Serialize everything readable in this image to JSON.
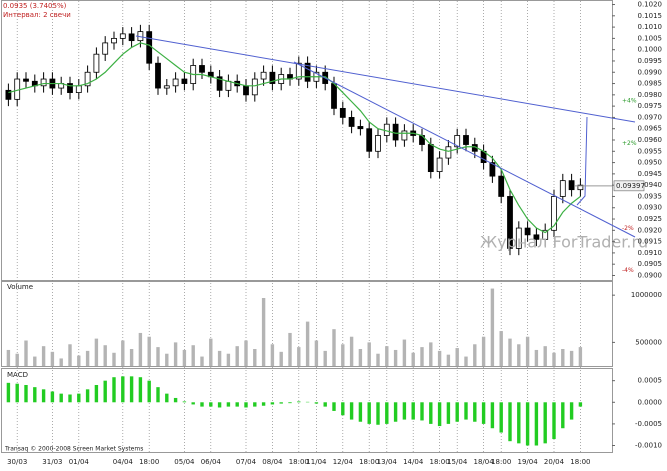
{
  "chart_data": [
    {
      "type": "candlestick",
      "title": "0.0935 (3.7405%)",
      "subtitle": "Интервал: 2 свечи",
      "watermark": "Журнал ForTrader.ru",
      "footer": "Transaq © 2000-2008 Screen Market Systems",
      "categories": [
        null,
        "30/03",
        null,
        null,
        null,
        "31/03",
        null,
        null,
        "01/04",
        null,
        null,
        null,
        null,
        "04/04",
        null,
        null,
        "18:00",
        null,
        null,
        null,
        "05/04",
        null,
        null,
        "06/04",
        null,
        null,
        null,
        "07/04",
        null,
        null,
        "08/04",
        null,
        null,
        "18:00",
        null,
        "11/04",
        null,
        null,
        "12/04",
        null,
        null,
        "18:00",
        null,
        "13/04",
        null,
        null,
        "14/04",
        null,
        null,
        "18:00",
        null,
        "15/04",
        null,
        null,
        "18/04",
        null,
        "18:00",
        null,
        null,
        "19/04",
        null,
        null,
        "20/04",
        null,
        null,
        "18:00"
      ],
      "open": [
        0.0982,
        0.0978,
        0.0987,
        0.0986,
        0.0984,
        0.0987,
        0.0983,
        0.0985,
        0.0981,
        0.0984,
        0.099,
        0.0998,
        0.1003,
        0.1005,
        0.1007,
        0.1004,
        0.1008,
        0.0994,
        0.0983,
        0.0984,
        0.0987,
        0.0985,
        0.0993,
        0.099,
        0.0988,
        0.0982,
        0.0986,
        0.0984,
        0.098,
        0.0987,
        0.099,
        0.0985,
        0.0989,
        0.0987,
        0.0994,
        0.0986,
        0.099,
        0.0985,
        0.0974,
        0.097,
        0.0966,
        0.0965,
        0.0955,
        0.0962,
        0.0967,
        0.096,
        0.0964,
        0.0962,
        0.0958,
        0.0946,
        0.0952,
        0.0957,
        0.0962,
        0.0958,
        0.0955,
        0.095,
        0.0944,
        0.0935,
        0.0912,
        0.0921,
        0.0918,
        0.0916,
        0.092,
        0.0935,
        0.0942,
        0.0938
      ],
      "high": [
        0.0985,
        0.099,
        0.099,
        0.0989,
        0.099,
        0.099,
        0.0988,
        0.0988,
        0.0987,
        0.0993,
        0.1001,
        0.1006,
        0.1008,
        0.101,
        0.101,
        0.1011,
        0.1011,
        0.0997,
        0.0987,
        0.099,
        0.099,
        0.0996,
        0.0996,
        0.0993,
        0.0991,
        0.0989,
        0.0989,
        0.0987,
        0.099,
        0.0993,
        0.0993,
        0.0992,
        0.0992,
        0.0997,
        0.0997,
        0.0993,
        0.0993,
        0.0988,
        0.0977,
        0.0973,
        0.0969,
        0.0968,
        0.0965,
        0.097,
        0.097,
        0.0967,
        0.0967,
        0.0965,
        0.0961,
        0.0955,
        0.096,
        0.0965,
        0.0965,
        0.0961,
        0.0958,
        0.0953,
        0.0947,
        0.0938,
        0.0924,
        0.0924,
        0.0921,
        0.0923,
        0.0938,
        0.0945,
        0.0945,
        0.0943
      ],
      "low": [
        0.0975,
        0.0975,
        0.0983,
        0.0981,
        0.0981,
        0.098,
        0.098,
        0.0978,
        0.0978,
        0.0981,
        0.0987,
        0.0995,
        0.1,
        0.1002,
        0.1001,
        0.1001,
        0.0991,
        0.098,
        0.098,
        0.0981,
        0.0982,
        0.0982,
        0.0987,
        0.0985,
        0.0979,
        0.0979,
        0.0981,
        0.0977,
        0.0977,
        0.0984,
        0.0982,
        0.0982,
        0.0984,
        0.0984,
        0.0983,
        0.0983,
        0.0982,
        0.0971,
        0.0967,
        0.0963,
        0.0962,
        0.0952,
        0.0952,
        0.0959,
        0.0957,
        0.0957,
        0.0959,
        0.0955,
        0.0943,
        0.0943,
        0.0949,
        0.0954,
        0.0955,
        0.0952,
        0.0947,
        0.0941,
        0.0932,
        0.0909,
        0.0909,
        0.0915,
        0.0913,
        0.0913,
        0.0917,
        0.0932,
        0.0935,
        0.0935
      ],
      "close": [
        0.0978,
        0.0987,
        0.0986,
        0.0984,
        0.0987,
        0.0983,
        0.0985,
        0.0981,
        0.0984,
        0.099,
        0.0998,
        0.1003,
        0.1005,
        0.1007,
        0.1004,
        0.1008,
        0.0994,
        0.0983,
        0.0984,
        0.0987,
        0.0985,
        0.0993,
        0.099,
        0.0988,
        0.0982,
        0.0986,
        0.0984,
        0.098,
        0.0987,
        0.099,
        0.0985,
        0.0989,
        0.0987,
        0.0994,
        0.0986,
        0.099,
        0.0985,
        0.0974,
        0.097,
        0.0966,
        0.0965,
        0.0955,
        0.0962,
        0.0967,
        0.096,
        0.0964,
        0.0962,
        0.0958,
        0.0946,
        0.0952,
        0.0957,
        0.0962,
        0.0958,
        0.0955,
        0.095,
        0.0944,
        0.0935,
        0.0912,
        0.0921,
        0.0918,
        0.0916,
        0.092,
        0.0935,
        0.0942,
        0.0938,
        0.094
      ],
      "ma": {
        "color": "#3cb043",
        "values": [
          0.0981,
          0.0982,
          0.0983,
          0.0984,
          0.0985,
          0.0985,
          0.0985,
          0.0984,
          0.0984,
          0.0985,
          0.0987,
          0.099,
          0.0994,
          0.0998,
          0.1001,
          0.1003,
          0.1002,
          0.0999,
          0.0996,
          0.0993,
          0.099,
          0.0989,
          0.0989,
          0.0988,
          0.0987,
          0.0986,
          0.0985,
          0.0984,
          0.0984,
          0.0985,
          0.0986,
          0.0987,
          0.0987,
          0.0988,
          0.0988,
          0.0988,
          0.0988,
          0.0985,
          0.0981,
          0.0977,
          0.0973,
          0.0968,
          0.0965,
          0.0964,
          0.0963,
          0.0963,
          0.0963,
          0.0962,
          0.0958,
          0.0956,
          0.0955,
          0.0956,
          0.0957,
          0.0957,
          0.0955,
          0.0952,
          0.0947,
          0.0938,
          0.0931,
          0.0925,
          0.0921,
          0.0919,
          0.0922,
          0.0928,
          0.0932,
          0.0935
        ]
      },
      "current_price": {
        "value": 0.09397,
        "label": "0.09397"
      },
      "levels": [
        {
          "value": 4,
          "label": "+4%",
          "color": "#2a9a2a"
        },
        {
          "value": 2,
          "label": "+2%",
          "color": "#2a9a2a"
        },
        {
          "value": -2,
          "label": "-2%",
          "color": "#c02020"
        },
        {
          "value": -4,
          "label": "-4%",
          "color": "#c02020"
        }
      ],
      "ylim": [
        0.0898,
        0.1022
      ],
      "yticks": [
        {
          "value": 0.102,
          "label": "0.1020"
        },
        {
          "value": 0.1015,
          "label": "0.1015"
        },
        {
          "value": 0.101,
          "label": "0.1010"
        },
        {
          "value": 0.1005,
          "label": "0.1005"
        },
        {
          "value": 0.1,
          "label": "0.1000"
        },
        {
          "value": 0.0995,
          "label": "0.0995"
        },
        {
          "value": 0.099,
          "label": "0.0990"
        },
        {
          "value": 0.0985,
          "label": "0.0985"
        },
        {
          "value": 0.098,
          "label": "0.0980"
        },
        {
          "value": 0.0975,
          "label": "0.0975"
        },
        {
          "value": 0.097,
          "label": "0.0970"
        },
        {
          "value": 0.0965,
          "label": "0.0965"
        },
        {
          "value": 0.096,
          "label": "0.0960"
        },
        {
          "value": 0.0955,
          "label": "0.0955"
        },
        {
          "value": 0.095,
          "label": "0.0950"
        },
        {
          "value": 0.0945,
          "label": "0.0945"
        },
        {
          "value": 0.094,
          "label": "0.0940"
        },
        {
          "value": 0.0935,
          "label": "0.0935"
        },
        {
          "value": 0.093,
          "label": "0.0930"
        },
        {
          "value": 0.0925,
          "label": "0.0925"
        },
        {
          "value": 0.092,
          "label": "0.0920"
        },
        {
          "value": 0.0915,
          "label": "0.0915"
        },
        {
          "value": 0.091,
          "label": "0.0910"
        },
        {
          "value": 0.0905,
          "label": "0.0905"
        },
        {
          "value": 0.09,
          "label": "0.0900"
        }
      ]
    },
    {
      "type": "bar",
      "title": "Volume",
      "color": "#b4b4b4",
      "values": [
        420000,
        380000,
        520000,
        350000,
        460000,
        400000,
        330000,
        480000,
        360000,
        410000,
        540000,
        470000,
        390000,
        520000,
        430000,
        600000,
        560000,
        450000,
        380000,
        500000,
        420000,
        470000,
        350000,
        540000,
        410000,
        380000,
        460000,
        520000,
        430000,
        970000,
        480000,
        400000,
        600000,
        450000,
        720000,
        520000,
        410000,
        640000,
        480000,
        560000,
        430000,
        500000,
        380000,
        460000,
        420000,
        530000,
        390000,
        450000,
        500000,
        410000,
        370000,
        440000,
        350000,
        480000,
        560000,
        1070000,
        620000,
        540000,
        480000,
        560000,
        420000,
        460000,
        390000,
        430000,
        410000,
        450000
      ],
      "ylim": [
        250000,
        1150000
      ],
      "yticks": [
        500000,
        1000000
      ]
    },
    {
      "type": "bar",
      "title": "MACD",
      "color": "#22cc22",
      "values": [
        0.00045,
        0.00043,
        0.0004,
        0.00035,
        0.0003,
        0.00025,
        0.0002,
        0.00018,
        0.0002,
        0.0003,
        0.0004,
        0.0005,
        0.00058,
        0.0006,
        0.0006,
        0.00058,
        0.0005,
        0.00035,
        0.0002,
        0.0001,
        2e-05,
        -5e-05,
        -0.0001,
        -0.0001,
        -0.00012,
        -0.0001,
        -0.0001,
        -0.00012,
        -0.0001,
        -8e-05,
        -5e-05,
        -3e-05,
        -2e-05,
        2e-05,
        1e-05,
        -3e-05,
        -0.0001,
        -0.0002,
        -0.0003,
        -0.0004,
        -0.00045,
        -0.0005,
        -0.00052,
        -0.0005,
        -0.00045,
        -0.0004,
        -0.0004,
        -0.00042,
        -0.0005,
        -0.00055,
        -0.0005,
        -0.00045,
        -0.0004,
        -0.00045,
        -0.0005,
        -0.0006,
        -0.0007,
        -0.0009,
        -0.00095,
        -0.001,
        -0.001,
        -0.00095,
        -0.00085,
        -0.0006,
        -0.0004,
        -0.0001
      ],
      "ylim": [
        -0.00115,
        0.00077
      ],
      "yticks": [
        {
          "value": 0.0005,
          "label": "0.0005"
        },
        {
          "value": 0,
          "label": "0.0000"
        },
        {
          "value": -0.0005,
          "label": "-0.0005"
        },
        {
          "value": -0.001,
          "label": "-0.0010"
        }
      ]
    }
  ]
}
